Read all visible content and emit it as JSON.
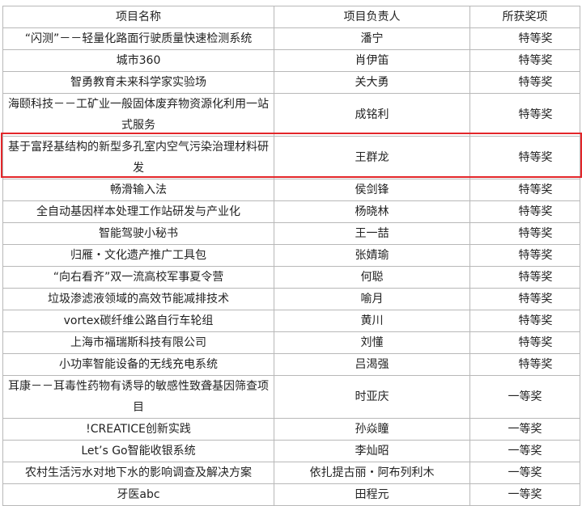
{
  "table": {
    "headers": [
      "项目名称",
      "项目负责人",
      "所获奖项"
    ],
    "rows": [
      {
        "name": "“闪测”－－轻量化路面行驶质量快速检测系统",
        "leader": "潘宁",
        "award": "特等奖"
      },
      {
        "name": "城市360",
        "leader": "肖伊笛",
        "award": "特等奖"
      },
      {
        "name": "智勇教育未来科学家实验场",
        "leader": "关大勇",
        "award": "特等奖"
      },
      {
        "name": "海颐科技－－工矿业一般固体废弃物资源化利用一站式服务",
        "leader": "成铭利",
        "award": "特等奖"
      },
      {
        "name": "基于富羟基结构的新型多孔室内空气污染治理材料研发",
        "leader": "王群龙",
        "award": "特等奖",
        "highlighted": true
      },
      {
        "name": "畅滑输入法",
        "leader": "侯剑锋",
        "award": "特等奖"
      },
      {
        "name": "全自动基因样本处理工作站研发与产业化",
        "leader": "杨晓林",
        "award": "特等奖"
      },
      {
        "name": "智能驾驶小秘书",
        "leader": "王一喆",
        "award": "特等奖"
      },
      {
        "name": "归雁・文化遗产推广工具包",
        "leader": "张婧瑜",
        "award": "特等奖"
      },
      {
        "name": "“向右看齐”双一流高校军事夏令营",
        "leader": "何聪",
        "award": "特等奖"
      },
      {
        "name": "垃圾渗滤液领域的高效节能减排技术",
        "leader": "喻月",
        "award": "特等奖"
      },
      {
        "name": "vortex碳纤维公路自行车轮组",
        "leader": "黄川",
        "award": "特等奖"
      },
      {
        "name": "上海市福瑞斯科技有限公司",
        "leader": "刘懂",
        "award": "特等奖"
      },
      {
        "name": "小功率智能设备的无线充电系统",
        "leader": "吕渴强",
        "award": "特等奖"
      },
      {
        "name": "耳康－－耳毒性药物有诱导的敏感性致聋基因筛查项目",
        "leader": "时亚庆",
        "award": "一等奖"
      },
      {
        "name": "!CREATICE创新实践",
        "leader": "孙焱瞳",
        "award": "一等奖"
      },
      {
        "name": "Let’s Go智能收银系统",
        "leader": "李灿昭",
        "award": "一等奖"
      },
      {
        "name": "农村生活污水对地下水的影响调查及解决方案",
        "leader": "依扎提古丽・阿布列利木",
        "award": "一等奖"
      },
      {
        "name": "牙医abc",
        "leader": "田程元",
        "award": "一等奖"
      }
    ]
  },
  "colors": {
    "highlight": "#e3262a",
    "grid": "#b8b8b8"
  }
}
